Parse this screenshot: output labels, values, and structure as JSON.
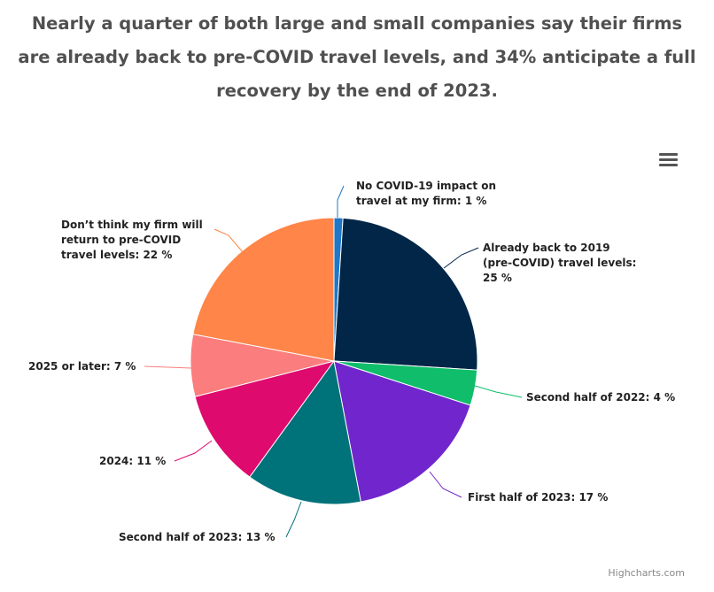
{
  "title": "Nearly a quarter of both large and small companies say their firms are already back to pre-COVID travel levels, and 34% anticipate a full recovery by the end of 2023.",
  "menu_icon": "hamburger-menu-icon",
  "credit": "Highcharts.com",
  "chart_data": {
    "type": "pie",
    "unit": "%",
    "slices": [
      {
        "label": "No COVID-19 impact on travel at my firm",
        "value": 1,
        "color": "#1f77c8"
      },
      {
        "label": "Already back to 2019 (pre-COVID) travel levels",
        "value": 25,
        "color": "#022648"
      },
      {
        "label": "Second half of 2022",
        "value": 4,
        "color": "#0fbd6a"
      },
      {
        "label": "First half of 2023",
        "value": 17,
        "color": "#7026cc"
      },
      {
        "label": "Second half of 2023",
        "value": 13,
        "color": "#00727a"
      },
      {
        "label": "2024",
        "value": 11,
        "color": "#df0a6d"
      },
      {
        "label": "2025 or later",
        "value": 7,
        "color": "#fb7d7d"
      },
      {
        "label": "Don't think my firm will return to pre-COVID travel levels",
        "value": 22,
        "color": "#ff8548"
      }
    ],
    "data_labels": [
      [
        "No COVID-19 impact on",
        "travel at my firm: 1 %"
      ],
      [
        "Already back to 2019",
        "(pre-COVID) travel levels:",
        "25 %"
      ],
      [
        "Second half of 2022: 4 %"
      ],
      [
        "First half of 2023: 17 %"
      ],
      [
        "Second half of 2023: 13 %"
      ],
      [
        "2024: 11 %"
      ],
      [
        "2025 or later: 7 %"
      ],
      [
        "Don’t think my firm will",
        "return to pre-COVID",
        "travel levels: 22 %"
      ]
    ]
  }
}
